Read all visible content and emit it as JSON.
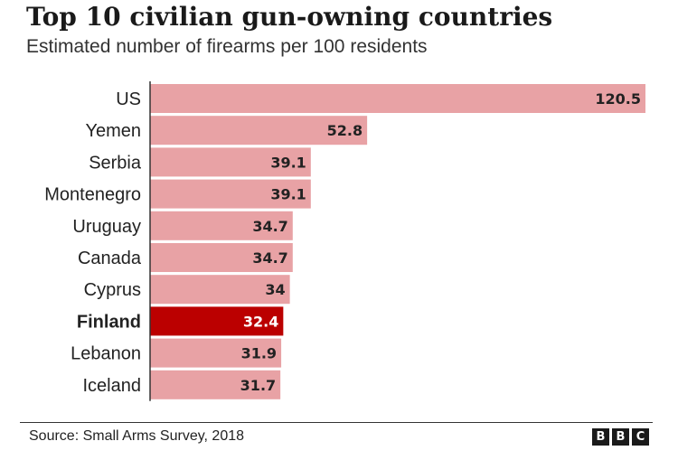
{
  "chart_data": {
    "type": "bar",
    "orientation": "horizontal",
    "title": "Top 10 civilian gun-owning countries",
    "subtitle": "Estimated number of firearms per 100 residents",
    "categories": [
      "US",
      "Yemen",
      "Serbia",
      "Montenegro",
      "Uruguay",
      "Canada",
      "Cyprus",
      "Finland",
      "Lebanon",
      "Iceland"
    ],
    "values": [
      120.5,
      52.8,
      39.1,
      39.1,
      34.7,
      34.7,
      34,
      32.4,
      31.9,
      31.7
    ],
    "value_labels": [
      "120.5",
      "52.8",
      "39.1",
      "39.1",
      "34.7",
      "34.7",
      "34",
      "32.4",
      "31.9",
      "31.7"
    ],
    "highlight": "Finland",
    "colors": {
      "bar": "#e8a2a5",
      "highlight": "#bb0000",
      "axis": "#333333"
    },
    "xlim": [
      0,
      120.5
    ],
    "grid": false,
    "legend": "none"
  },
  "footer": {
    "source": "Source: Small Arms Survey, 2018",
    "logo_letters": [
      "B",
      "B",
      "C"
    ]
  }
}
